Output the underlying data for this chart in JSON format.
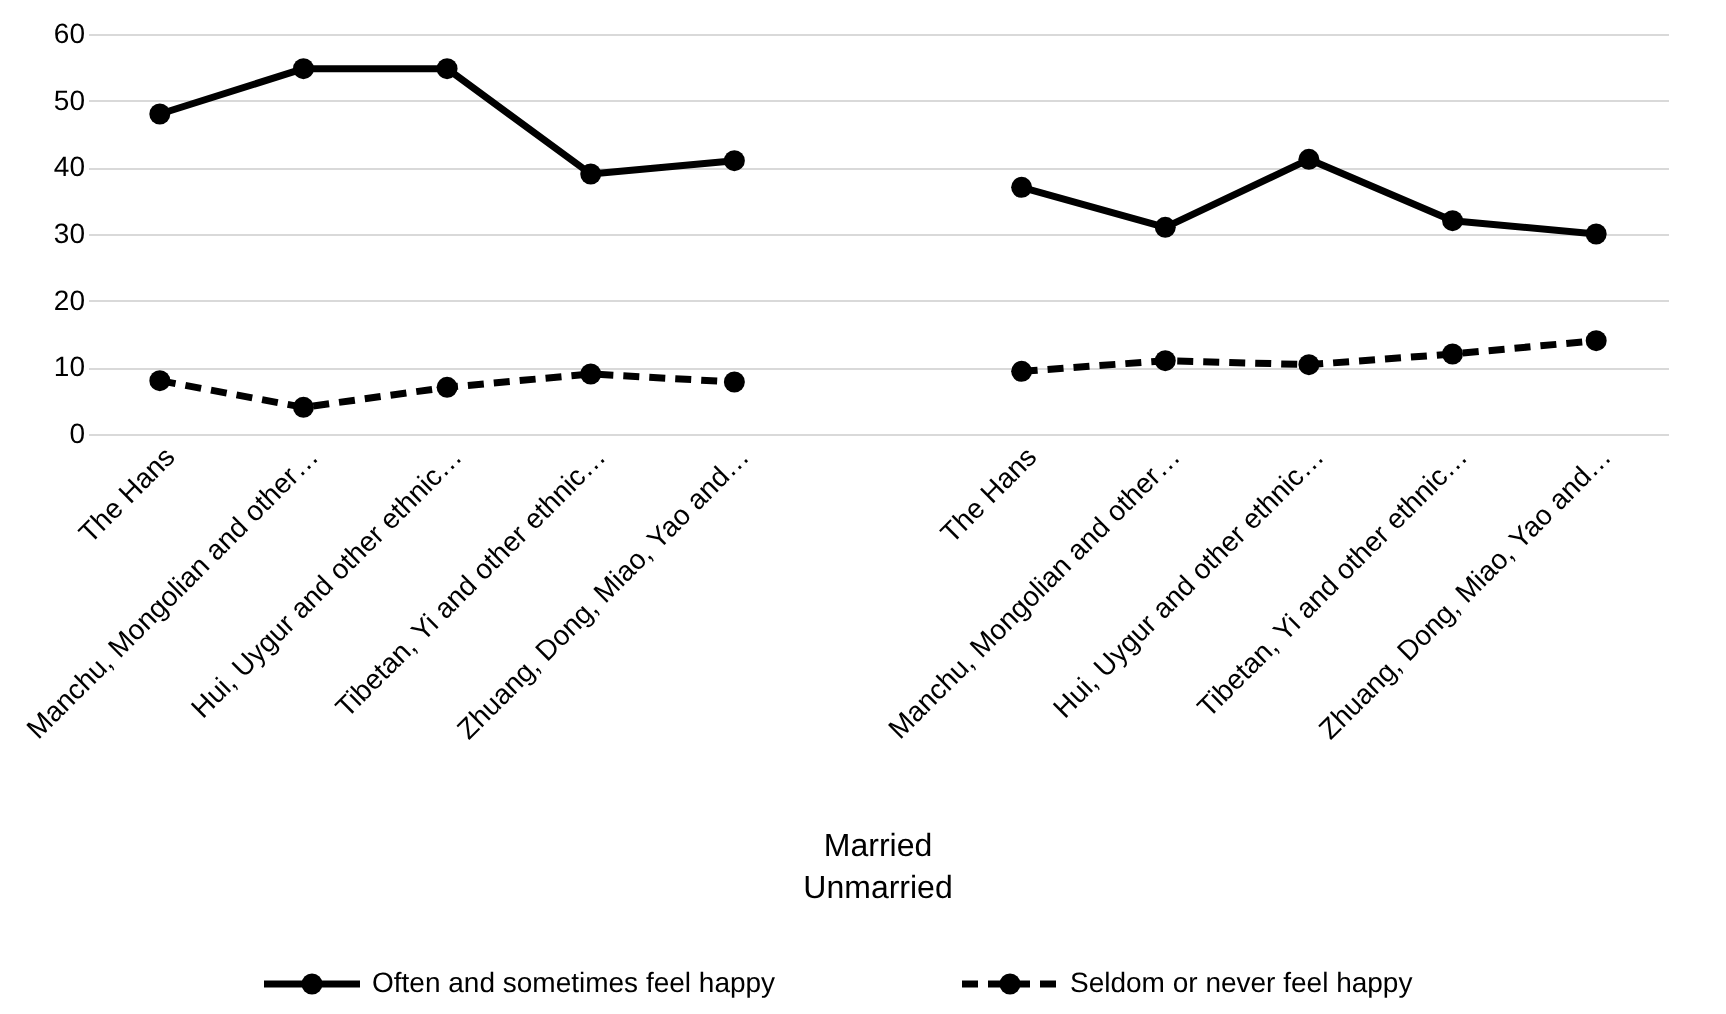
{
  "chart_data": {
    "type": "line",
    "categories": [
      "The Hans",
      "Manchu, Mongolian and other…",
      "Hui, Uygur and other ethnic…",
      "Tibetan, Yi and other ethnic…",
      "Zhuang, Dong, Miao, Yao and…",
      null,
      "The Hans",
      "Manchu, Mongolian and other…",
      "Hui, Uygur and other ethnic…",
      "Tibetan, Yi and other ethnic…",
      "Zhuang, Dong, Miao, Yao and…"
    ],
    "series": [
      {
        "name": "Often and sometimes feel happy",
        "color": "#000000",
        "line_style": "solid",
        "values": [
          48,
          54.8,
          54.8,
          39,
          41,
          null,
          37,
          31,
          41.2,
          32,
          30
        ]
      },
      {
        "name": "Seldom or never feel happy",
        "color": "#000000",
        "line_style": "dashed",
        "values": [
          8,
          4,
          7,
          9,
          7.8,
          null,
          9.4,
          11,
          10.4,
          12,
          14
        ]
      }
    ],
    "ylim": [
      0,
      60
    ],
    "yticks": [
      0,
      10,
      20,
      30,
      40,
      50,
      60
    ],
    "grid": "y",
    "legend": "bottom",
    "marker": "circle",
    "annotations": [
      "Married",
      "Unmarried"
    ]
  }
}
